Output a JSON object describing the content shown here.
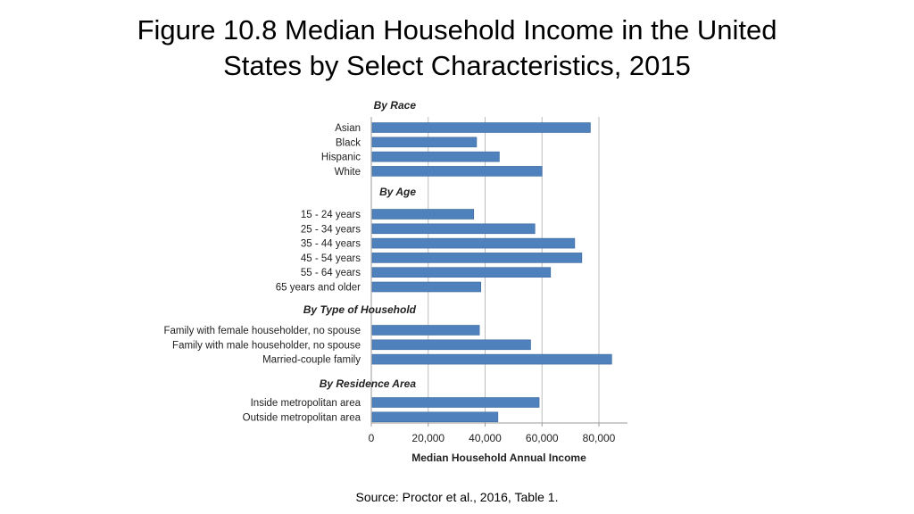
{
  "slide": {
    "title_line1": "Figure 10.8 Median Household Income in the United",
    "title_line2": "States by Select Characteristics, 2015",
    "source": "Source: Proctor et al., 2016, Table 1."
  },
  "chart_data": {
    "type": "bar",
    "orientation": "horizontal",
    "xlabel": "Median Household Annual Income",
    "xlim": [
      0,
      90000
    ],
    "xticks": [
      0,
      20000,
      40000,
      60000,
      80000
    ],
    "xtick_labels": [
      "0",
      "20,000",
      "40,000",
      "60,000",
      "80,000"
    ],
    "grid": true,
    "bar_color": "#4f81bd",
    "groups": [
      {
        "name": "By Race",
        "categories": [
          "Asian",
          "Black",
          "Hispanic",
          "White"
        ],
        "values": [
          77000,
          37000,
          45000,
          60000
        ]
      },
      {
        "name": "By Age",
        "categories": [
          "15 - 24 years",
          "25 - 34 years",
          "35 - 44 years",
          "45 - 54 years",
          "55 - 64 years",
          "65 years and older"
        ],
        "values": [
          36000,
          57500,
          71500,
          74000,
          63000,
          38500
        ]
      },
      {
        "name": "By Type of Household",
        "categories": [
          "Family with female householder, no spouse",
          "Family with male householder, no spouse",
          "Married-couple family"
        ],
        "values": [
          38000,
          56000,
          84500
        ]
      },
      {
        "name": "By Residence Area",
        "categories": [
          "Inside metropolitan area",
          "Outside metropolitan area"
        ],
        "values": [
          59000,
          44500
        ]
      }
    ]
  }
}
